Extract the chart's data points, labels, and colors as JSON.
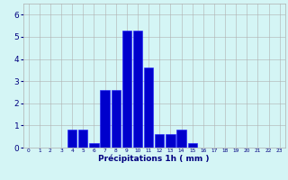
{
  "categories": [
    0,
    1,
    2,
    3,
    4,
    5,
    6,
    7,
    8,
    9,
    10,
    11,
    12,
    13,
    14,
    15,
    16,
    17,
    18,
    19,
    20,
    21,
    22,
    23
  ],
  "values": [
    0,
    0,
    0,
    0,
    0.8,
    0.8,
    0.2,
    2.6,
    2.6,
    5.3,
    5.3,
    3.6,
    0.6,
    0.6,
    0.8,
    0.2,
    0,
    0,
    0,
    0,
    0,
    0,
    0,
    0
  ],
  "bar_color": "#0000cc",
  "bar_edge_color": "#1a1aff",
  "background_color": "#d4f5f5",
  "grid_color": "#b0b0b0",
  "xlabel": "Précipitations 1h ( mm )",
  "xlabel_color": "#000080",
  "tick_color": "#000080",
  "ylim": [
    0,
    6.5
  ],
  "yticks": [
    0,
    1,
    2,
    3,
    4,
    5,
    6
  ],
  "figsize": [
    3.2,
    2.0
  ],
  "dpi": 100
}
